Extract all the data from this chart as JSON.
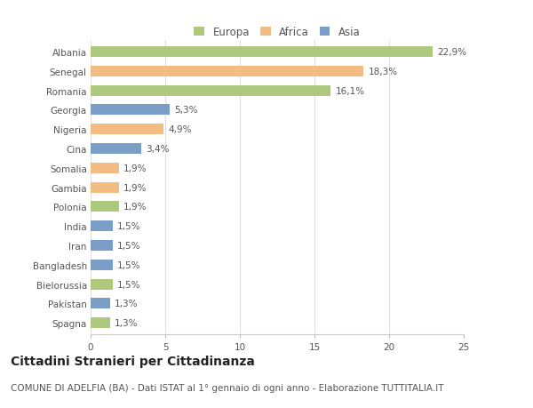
{
  "countries": [
    "Albania",
    "Senegal",
    "Romania",
    "Georgia",
    "Nigeria",
    "Cina",
    "Somalia",
    "Gambia",
    "Polonia",
    "India",
    "Iran",
    "Bangladesh",
    "Bielorussia",
    "Pakistan",
    "Spagna"
  ],
  "values": [
    22.9,
    18.3,
    16.1,
    5.3,
    4.9,
    3.4,
    1.9,
    1.9,
    1.9,
    1.5,
    1.5,
    1.5,
    1.5,
    1.3,
    1.3
  ],
  "labels": [
    "22,9%",
    "18,3%",
    "16,1%",
    "5,3%",
    "4,9%",
    "3,4%",
    "1,9%",
    "1,9%",
    "1,9%",
    "1,5%",
    "1,5%",
    "1,5%",
    "1,5%",
    "1,3%",
    "1,3%"
  ],
  "continents": [
    "Europa",
    "Africa",
    "Europa",
    "Asia",
    "Africa",
    "Asia",
    "Africa",
    "Africa",
    "Europa",
    "Asia",
    "Asia",
    "Asia",
    "Europa",
    "Asia",
    "Europa"
  ],
  "colors": {
    "Europa": "#adc97e",
    "Africa": "#f2bc82",
    "Asia": "#7b9ec8"
  },
  "xlim": [
    0,
    25
  ],
  "xticks": [
    0,
    5,
    10,
    15,
    20,
    25
  ],
  "title": "Cittadini Stranieri per Cittadinanza",
  "subtitle": "COMUNE DI ADELFIA (BA) - Dati ISTAT al 1° gennaio di ogni anno - Elaborazione TUTTITALIA.IT",
  "background_color": "#ffffff",
  "grid_color": "#e0e0e0",
  "bar_height": 0.55,
  "title_fontsize": 10,
  "subtitle_fontsize": 7.5,
  "label_fontsize": 7.5,
  "tick_fontsize": 7.5,
  "legend_fontsize": 8.5
}
